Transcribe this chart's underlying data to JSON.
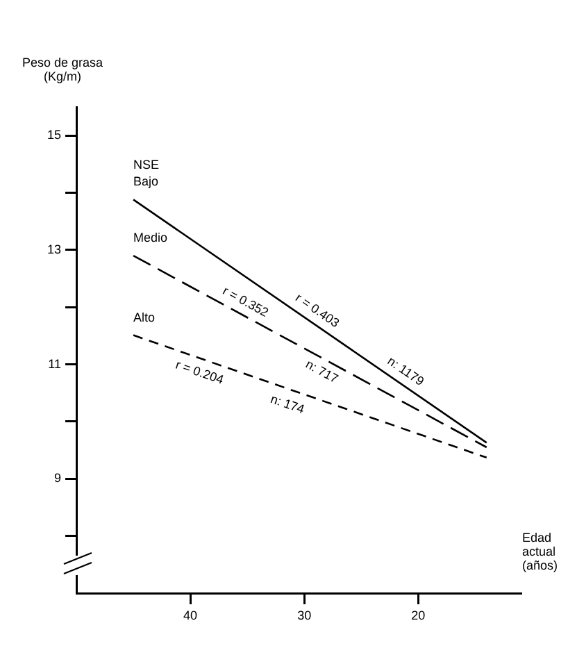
{
  "chart_data": {
    "type": "line",
    "xlabel": "Edad actual (años)",
    "ylabel": "Peso de grasa (Kg/m)",
    "x": [
      45,
      14
    ],
    "series": [
      {
        "name": "NSE Bajo",
        "color": "#000000",
        "line_style": "solid",
        "values": [
          13.88,
          9.63
        ]
      },
      {
        "name": "Medio",
        "color": "#000000",
        "line_style": "dashed",
        "values": [
          12.9,
          9.55
        ]
      },
      {
        "name": "Alto",
        "color": "#000000",
        "line_style": "dotted",
        "values": [
          11.51,
          9.37
        ]
      }
    ],
    "xlim": [
      50,
      11
    ],
    "xticks": [
      40,
      30,
      20
    ],
    "ylim": [
      7,
      15.5
    ],
    "yticks": [
      15,
      {
        "value": 14,
        "label": null
      },
      13,
      {
        "value": 12,
        "label": null
      },
      11,
      {
        "value": 10,
        "label": null
      },
      9,
      {
        "value": 8,
        "label": null
      }
    ],
    "annotations": [
      "r = 0.403",
      "n: 1179",
      "r = 0.352",
      "n: 717",
      "r = 0.204",
      "n: 174"
    ],
    "grid": false,
    "legend": false,
    "marker": "none"
  }
}
